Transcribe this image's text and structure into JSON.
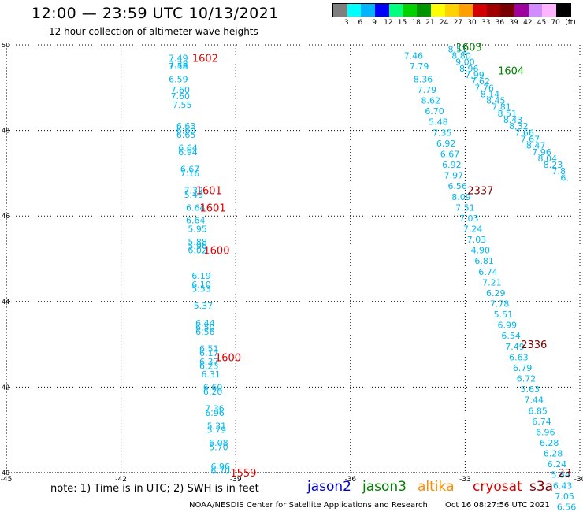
{
  "title": "12:00 — 23:59 UTC 10/13/2021",
  "subtitle": "12 hour collection of altimeter wave heights",
  "legend": {
    "unit": "(ft)",
    "colors": [
      "#7f7f7f",
      "#00ffff",
      "#00b4ff",
      "#0000ff",
      "#00ff7f",
      "#00d200",
      "#009600",
      "#ffff00",
      "#ffd200",
      "#ffa000",
      "#d20000",
      "#a00000",
      "#780000",
      "#a000a0",
      "#d28cff",
      "#ffb4ff",
      "#000000"
    ],
    "labels": [
      "3",
      "6",
      "9",
      "12",
      "15",
      "18",
      "21",
      "24",
      "27",
      "30",
      "33",
      "36",
      "39",
      "42",
      "45",
      "70"
    ]
  },
  "chart_data": {
    "type": "scatter",
    "xlim": [
      -45,
      -30
    ],
    "ylim": [
      40,
      50
    ],
    "x_ticks": [
      "-45",
      "-42",
      "-39",
      "-36",
      "-33",
      "-30"
    ],
    "y_ticks": [
      "40",
      "42",
      "44",
      "46",
      "48",
      "50"
    ],
    "point_color": "#00b8f0",
    "track_labels": [
      {
        "text": "1602",
        "x": -39.8,
        "y": 49.7,
        "color": "#e00000"
      },
      {
        "text": "1601",
        "x": -39.7,
        "y": 46.6,
        "color": "#e00000"
      },
      {
        "text": "1601",
        "x": -39.6,
        "y": 46.2,
        "color": "#e00000"
      },
      {
        "text": "1600",
        "x": -39.5,
        "y": 45.2,
        "color": "#e00000"
      },
      {
        "text": "1600",
        "x": -39.2,
        "y": 42.7,
        "color": "#e00000"
      },
      {
        "text": "1559",
        "x": -38.8,
        "y": 40.0,
        "color": "#e00000"
      },
      {
        "text": "1603",
        "x": -32.9,
        "y": 49.95,
        "color": "#008000"
      },
      {
        "text": "1604",
        "x": -31.8,
        "y": 49.4,
        "color": "#008000"
      },
      {
        "text": "2337",
        "x": -32.6,
        "y": 46.6,
        "color": "#800000"
      },
      {
        "text": "2336",
        "x": -31.2,
        "y": 43.0,
        "color": "#800000"
      },
      {
        "text": "23",
        "x": -30.4,
        "y": 40.0,
        "color": "#800000"
      }
    ],
    "points": [
      {
        "x": -40.5,
        "y": 49.7,
        "v": "7.49"
      },
      {
        "x": -40.5,
        "y": 49.55,
        "v": "7.38"
      },
      {
        "x": -40.5,
        "y": 49.5,
        "v": "7.58"
      },
      {
        "x": -40.5,
        "y": 49.2,
        "v": "6.59"
      },
      {
        "x": -40.45,
        "y": 48.95,
        "v": "7.60"
      },
      {
        "x": -40.45,
        "y": 48.8,
        "v": "7.60"
      },
      {
        "x": -40.4,
        "y": 48.6,
        "v": "7.55"
      },
      {
        "x": -40.3,
        "y": 48.1,
        "v": "6.63"
      },
      {
        "x": -40.3,
        "y": 48.0,
        "v": "6.60"
      },
      {
        "x": -40.3,
        "y": 47.9,
        "v": "6.65"
      },
      {
        "x": -40.25,
        "y": 47.6,
        "v": "6.64"
      },
      {
        "x": -40.25,
        "y": 47.5,
        "v": "6.94"
      },
      {
        "x": -40.2,
        "y": 47.1,
        "v": "6.67"
      },
      {
        "x": -40.2,
        "y": 47.0,
        "v": "7.16"
      },
      {
        "x": -40.1,
        "y": 46.6,
        "v": "7.32"
      },
      {
        "x": -40.1,
        "y": 46.5,
        "v": "5.49"
      },
      {
        "x": -40.05,
        "y": 46.2,
        "v": "6.64"
      },
      {
        "x": -40.05,
        "y": 45.9,
        "v": "6.64"
      },
      {
        "x": -40.0,
        "y": 45.7,
        "v": "5.95"
      },
      {
        "x": -40.0,
        "y": 45.4,
        "v": "5.88"
      },
      {
        "x": -40.0,
        "y": 45.3,
        "v": "5.96"
      },
      {
        "x": -40.0,
        "y": 45.2,
        "v": "6.02"
      },
      {
        "x": -39.9,
        "y": 44.6,
        "v": "6.19"
      },
      {
        "x": -39.9,
        "y": 44.4,
        "v": "6.10"
      },
      {
        "x": -39.9,
        "y": 44.3,
        "v": "5.53"
      },
      {
        "x": -39.85,
        "y": 43.9,
        "v": "5.37"
      },
      {
        "x": -39.8,
        "y": 43.5,
        "v": "6.44"
      },
      {
        "x": -39.8,
        "y": 43.4,
        "v": "6.50"
      },
      {
        "x": -39.8,
        "y": 43.3,
        "v": "6.56"
      },
      {
        "x": -39.7,
        "y": 42.9,
        "v": "6.51"
      },
      {
        "x": -39.7,
        "y": 42.8,
        "v": "6.17"
      },
      {
        "x": -39.7,
        "y": 42.6,
        "v": "6.37"
      },
      {
        "x": -39.7,
        "y": 42.5,
        "v": "6.23"
      },
      {
        "x": -39.65,
        "y": 42.3,
        "v": "6.31"
      },
      {
        "x": -39.6,
        "y": 42.0,
        "v": "6.60"
      },
      {
        "x": -39.6,
        "y": 41.9,
        "v": "6.20"
      },
      {
        "x": -39.55,
        "y": 41.5,
        "v": "7.36"
      },
      {
        "x": -39.55,
        "y": 41.4,
        "v": "6.96"
      },
      {
        "x": -39.5,
        "y": 41.1,
        "v": "5.31"
      },
      {
        "x": -39.5,
        "y": 41.0,
        "v": "5.79"
      },
      {
        "x": -39.45,
        "y": 40.7,
        "v": "6.08"
      },
      {
        "x": -39.45,
        "y": 40.6,
        "v": "5.70"
      },
      {
        "x": -39.4,
        "y": 40.15,
        "v": "6.96"
      },
      {
        "x": -39.4,
        "y": 40.05,
        "v": "6.70"
      },
      {
        "x": -34.35,
        "y": 49.75,
        "v": "7.46"
      },
      {
        "x": -34.2,
        "y": 49.5,
        "v": "7.79"
      },
      {
        "x": -34.1,
        "y": 49.2,
        "v": "8.36"
      },
      {
        "x": -34.0,
        "y": 48.95,
        "v": "7.79"
      },
      {
        "x": -33.9,
        "y": 48.7,
        "v": "8.62"
      },
      {
        "x": -33.8,
        "y": 48.45,
        "v": "6.70"
      },
      {
        "x": -33.7,
        "y": 48.2,
        "v": "5.48"
      },
      {
        "x": -33.6,
        "y": 47.95,
        "v": "7.35"
      },
      {
        "x": -33.5,
        "y": 47.7,
        "v": "6.92"
      },
      {
        "x": -33.4,
        "y": 47.45,
        "v": "6.67"
      },
      {
        "x": -33.35,
        "y": 47.2,
        "v": "6.92"
      },
      {
        "x": -33.3,
        "y": 46.95,
        "v": "7.97"
      },
      {
        "x": -33.2,
        "y": 46.7,
        "v": "6.56"
      },
      {
        "x": -33.1,
        "y": 46.45,
        "v": "8.09"
      },
      {
        "x": -33.0,
        "y": 46.2,
        "v": "7.51"
      },
      {
        "x": -32.9,
        "y": 45.95,
        "v": "7.03"
      },
      {
        "x": -32.8,
        "y": 45.7,
        "v": "7.24"
      },
      {
        "x": -32.7,
        "y": 45.45,
        "v": "7.03"
      },
      {
        "x": -32.6,
        "y": 45.2,
        "v": "4.90"
      },
      {
        "x": -32.5,
        "y": 44.95,
        "v": "6.81"
      },
      {
        "x": -32.4,
        "y": 44.7,
        "v": "6.74"
      },
      {
        "x": -32.3,
        "y": 44.45,
        "v": "7.21"
      },
      {
        "x": -32.2,
        "y": 44.2,
        "v": "6.29"
      },
      {
        "x": -32.1,
        "y": 43.95,
        "v": "7.78"
      },
      {
        "x": -32.0,
        "y": 43.7,
        "v": "5.51"
      },
      {
        "x": -31.9,
        "y": 43.45,
        "v": "6.99"
      },
      {
        "x": -31.8,
        "y": 43.2,
        "v": "6.54"
      },
      {
        "x": -31.7,
        "y": 42.95,
        "v": "7.49"
      },
      {
        "x": -31.6,
        "y": 42.7,
        "v": "6.63"
      },
      {
        "x": -31.5,
        "y": 42.45,
        "v": "6.79"
      },
      {
        "x": -31.4,
        "y": 42.2,
        "v": "6.72"
      },
      {
        "x": -31.3,
        "y": 41.95,
        "v": "5.63"
      },
      {
        "x": -31.2,
        "y": 41.7,
        "v": "7.44"
      },
      {
        "x": -31.1,
        "y": 41.45,
        "v": "6.85"
      },
      {
        "x": -31.0,
        "y": 41.2,
        "v": "6.74"
      },
      {
        "x": -30.9,
        "y": 40.95,
        "v": "6.96"
      },
      {
        "x": -30.8,
        "y": 40.7,
        "v": "6.28"
      },
      {
        "x": -30.7,
        "y": 40.45,
        "v": "6.28"
      },
      {
        "x": -30.6,
        "y": 40.2,
        "v": "6.24"
      },
      {
        "x": -30.5,
        "y": 39.95,
        "v": "5.84"
      },
      {
        "x": -30.45,
        "y": 39.7,
        "v": "6.43"
      },
      {
        "x": -30.4,
        "y": 39.45,
        "v": "7.05"
      },
      {
        "x": -30.35,
        "y": 39.2,
        "v": "6.56"
      },
      {
        "x": -33.2,
        "y": 49.9,
        "v": "8.51"
      },
      {
        "x": -33.1,
        "y": 49.75,
        "v": "8.80"
      },
      {
        "x": -33.0,
        "y": 49.6,
        "v": "9.00"
      },
      {
        "x": -32.9,
        "y": 49.45,
        "v": "8.96"
      },
      {
        "x": -32.75,
        "y": 49.3,
        "v": "7.99"
      },
      {
        "x": -32.6,
        "y": 49.15,
        "v": "7.62"
      },
      {
        "x": -32.5,
        "y": 49.0,
        "v": "7.76"
      },
      {
        "x": -32.35,
        "y": 48.85,
        "v": "8.14"
      },
      {
        "x": -32.2,
        "y": 48.7,
        "v": "8.45"
      },
      {
        "x": -32.05,
        "y": 48.55,
        "v": "7.81"
      },
      {
        "x": -31.9,
        "y": 48.4,
        "v": "8.51"
      },
      {
        "x": -31.75,
        "y": 48.25,
        "v": "8.43"
      },
      {
        "x": -31.6,
        "y": 48.1,
        "v": "8.32"
      },
      {
        "x": -31.45,
        "y": 47.95,
        "v": "7.66"
      },
      {
        "x": -31.3,
        "y": 47.8,
        "v": "7.67"
      },
      {
        "x": -31.15,
        "y": 47.65,
        "v": "8.47"
      },
      {
        "x": -31.0,
        "y": 47.5,
        "v": "7.96"
      },
      {
        "x": -30.85,
        "y": 47.35,
        "v": "8.04"
      },
      {
        "x": -30.7,
        "y": 47.2,
        "v": "8.23"
      },
      {
        "x": -30.55,
        "y": 47.05,
        "v": "7.8"
      },
      {
        "x": -30.4,
        "y": 46.9,
        "v": "6."
      }
    ]
  },
  "note": "note: 1) Time is in UTC; 2) SWH is in feet",
  "satellites": [
    {
      "name": "jason2",
      "color": "#0000d0"
    },
    {
      "name": "jason3",
      "color": "#008000"
    },
    {
      "name": "altika",
      "color": "#ff8c00"
    },
    {
      "name": "cryosat",
      "color": "#e00000"
    },
    {
      "name": "s3a",
      "color": "#800000"
    }
  ],
  "credit": "NOAA/NESDIS Center for Satellite Applications and Research",
  "timestamp": "Oct 16 08:27:56 UTC 2021"
}
